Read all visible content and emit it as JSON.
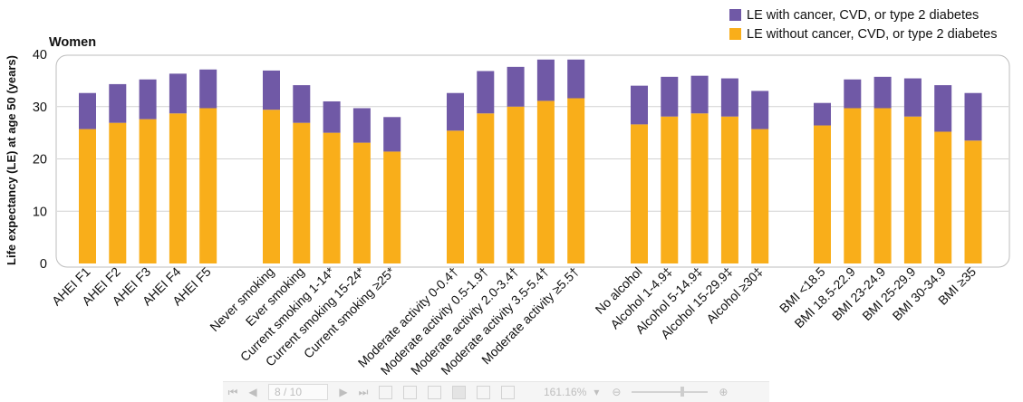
{
  "chart_data": {
    "type": "stacked-bar",
    "title": "Women",
    "xlabel": "",
    "ylabel": "Life expectancy (LE) at age 50 (years)",
    "ylim": [
      0,
      40
    ],
    "yticks": [
      0,
      10,
      20,
      30,
      40
    ],
    "grid": true,
    "legend_position": "top-right",
    "series": [
      {
        "name": "LE with cancer, CVD, or type 2 diabetes",
        "color": "#7059a6"
      },
      {
        "name": "LE without cancer, CVD, or type 2 diabetes",
        "color": "#f9ae1a"
      }
    ],
    "groups": [
      {
        "categories": [
          {
            "label": "AHEI F1",
            "without": 25.7,
            "total": 32.6
          },
          {
            "label": "AHEI F2",
            "without": 26.9,
            "total": 34.3
          },
          {
            "label": "AHEI F3",
            "without": 27.6,
            "total": 35.2
          },
          {
            "label": "AHEI F4",
            "without": 28.7,
            "total": 36.3
          },
          {
            "label": "AHEI F5",
            "without": 29.7,
            "total": 37.1
          }
        ]
      },
      {
        "categories": [
          {
            "label": "Never smoking",
            "without": 29.4,
            "total": 36.9
          },
          {
            "label": "Ever smoking",
            "without": 26.9,
            "total": 34.1
          },
          {
            "label": "Current smoking 1-14*",
            "without": 25.0,
            "total": 31.0
          },
          {
            "label": "Current smoking 15-24*",
            "without": 23.1,
            "total": 29.7
          },
          {
            "label": "Current smoking ≥25*",
            "without": 21.4,
            "total": 28.0
          }
        ]
      },
      {
        "categories": [
          {
            "label": "Moderate activity 0-0.4†",
            "without": 25.4,
            "total": 32.6
          },
          {
            "label": "Moderate activity 0.5-1.9†",
            "without": 28.7,
            "total": 36.8
          },
          {
            "label": "Moderate activity 2.0-3.4†",
            "without": 30.0,
            "total": 37.6
          },
          {
            "label": "Moderate activity 3.5-5.4†",
            "without": 31.1,
            "total": 39.0
          },
          {
            "label": "Moderate activity ≥5.5†",
            "without": 31.6,
            "total": 39.0
          }
        ]
      },
      {
        "categories": [
          {
            "label": "No alcohol",
            "without": 26.6,
            "total": 34.0
          },
          {
            "label": "Alcohol 1-4.9‡",
            "without": 28.1,
            "total": 35.7
          },
          {
            "label": "Alcohol 5-14.9‡",
            "without": 28.7,
            "total": 35.9
          },
          {
            "label": "Alcohol 15-29.9‡",
            "without": 28.1,
            "total": 35.4
          },
          {
            "label": "Alcohol ≥30‡",
            "without": 25.7,
            "total": 33.0
          }
        ]
      },
      {
        "categories": [
          {
            "label": "BMI <18.5",
            "without": 26.4,
            "total": 30.7
          },
          {
            "label": "BMI 18.5-22.9",
            "without": 29.7,
            "total": 35.2
          },
          {
            "label": "BMI 23-24.9",
            "without": 29.7,
            "total": 35.7
          },
          {
            "label": "BMI 25-29.9",
            "without": 28.1,
            "total": 35.4
          },
          {
            "label": "BMI 30-34.9",
            "without": 25.2,
            "total": 34.1
          },
          {
            "label": "BMI ≥35",
            "without": 23.5,
            "total": 32.6
          }
        ]
      }
    ]
  },
  "viewer_toolbar": {
    "page_indicator": "8 / 10",
    "zoom_level": "161.16%"
  }
}
